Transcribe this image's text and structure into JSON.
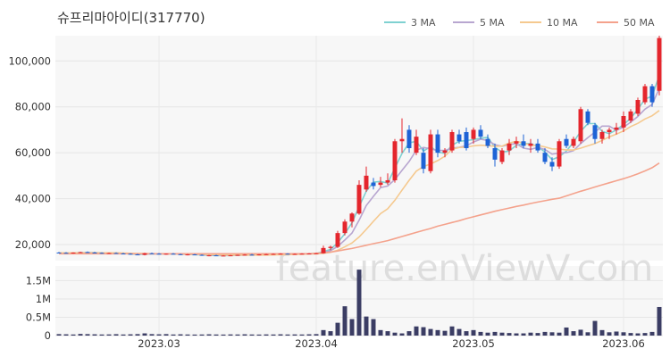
{
  "chart_data": [
    {
      "type": "candlestick",
      "title": "슈프리마아이디(317770)",
      "y_ticks": [
        20000,
        40000,
        60000,
        80000,
        100000
      ],
      "y_tick_labels": [
        "20,000",
        "40,000",
        "60,000",
        "80,000",
        "100,000"
      ],
      "ylim": [
        13000,
        111000
      ],
      "x_tick_labels": [
        "2023.03",
        "2023.04",
        "2023.05",
        "2023.06"
      ],
      "x_tick_index": [
        14,
        36,
        58,
        79
      ],
      "legend_placement": "top-right",
      "series": [
        {
          "name": "3 MA",
          "color": "#7fd1d1"
        },
        {
          "name": "5 MA",
          "color": "#b8a6d0"
        },
        {
          "name": "10 MA",
          "color": "#f5c98f"
        },
        {
          "name": "50 MA",
          "color": "#f4a28c"
        }
      ],
      "up_color": "#e4262d",
      "down_color": "#1e63d6",
      "candles": [
        [
          16500,
          16800,
          16200,
          16400
        ],
        [
          16400,
          16700,
          16100,
          16300
        ],
        [
          16300,
          16600,
          16000,
          16500
        ],
        [
          16500,
          16900,
          16300,
          16700
        ],
        [
          16700,
          17000,
          16400,
          16500
        ],
        [
          16500,
          16800,
          16200,
          16400
        ],
        [
          16400,
          16600,
          16000,
          16200
        ],
        [
          16200,
          16500,
          15900,
          16300
        ],
        [
          16300,
          16600,
          16000,
          16100
        ],
        [
          16100,
          16400,
          15800,
          16000
        ],
        [
          16000,
          16200,
          15600,
          15700
        ],
        [
          15700,
          16000,
          15400,
          15500
        ],
        [
          15500,
          16400,
          15300,
          16200
        ],
        [
          16200,
          16500,
          15900,
          16000
        ],
        [
          16000,
          16300,
          15700,
          15800
        ],
        [
          15800,
          16100,
          15600,
          16000
        ],
        [
          16000,
          16300,
          15700,
          15800
        ],
        [
          15800,
          16000,
          15500,
          15600
        ],
        [
          15600,
          15900,
          15300,
          15700
        ],
        [
          15700,
          15900,
          15400,
          15500
        ],
        [
          15500,
          15700,
          15100,
          15200
        ],
        [
          15200,
          15500,
          14900,
          15300
        ],
        [
          15300,
          15600,
          15000,
          15100
        ],
        [
          15100,
          15400,
          14900,
          15200
        ],
        [
          15200,
          15500,
          15000,
          15300
        ],
        [
          15300,
          15600,
          15100,
          15500
        ],
        [
          15500,
          15800,
          15300,
          15600
        ],
        [
          15600,
          15900,
          15400,
          15500
        ],
        [
          15500,
          15800,
          15300,
          15700
        ],
        [
          15700,
          16000,
          15500,
          15800
        ],
        [
          15800,
          16100,
          15600,
          15900
        ],
        [
          15900,
          16200,
          15700,
          16000
        ],
        [
          16000,
          16200,
          15700,
          15800
        ],
        [
          15800,
          16100,
          15600,
          15900
        ],
        [
          15900,
          16200,
          15700,
          16000
        ],
        [
          16000,
          16300,
          15800,
          16100
        ],
        [
          16100,
          16400,
          15900,
          16200
        ],
        [
          16200,
          19500,
          16000,
          18500
        ],
        [
          18500,
          19500,
          17500,
          19000
        ],
        [
          19000,
          26000,
          18500,
          25000
        ],
        [
          25000,
          31000,
          24000,
          30000
        ],
        [
          30000,
          34000,
          27500,
          33500
        ],
        [
          33500,
          48000,
          33000,
          46000
        ],
        [
          44000,
          54000,
          43000,
          50000
        ],
        [
          47000,
          49000,
          44000,
          45500
        ],
        [
          46000,
          49500,
          45000,
          47000
        ],
        [
          47000,
          51000,
          46000,
          48000
        ],
        [
          48000,
          66000,
          47000,
          65000
        ],
        [
          65000,
          75000,
          60000,
          66000
        ],
        [
          70000,
          72000,
          60000,
          62000
        ],
        [
          60000,
          70000,
          59000,
          67000
        ],
        [
          60000,
          62000,
          51000,
          53000
        ],
        [
          52000,
          70000,
          51000,
          68000
        ],
        [
          68000,
          70000,
          58000,
          60000
        ],
        [
          60000,
          62000,
          58000,
          61000
        ],
        [
          61000,
          70000,
          60000,
          69000
        ],
        [
          68000,
          70000,
          64000,
          65000
        ],
        [
          69000,
          71000,
          61000,
          62000
        ],
        [
          66000,
          71000,
          64000,
          70000
        ],
        [
          70000,
          72000,
          66000,
          67000
        ],
        [
          66000,
          68000,
          62000,
          63000
        ],
        [
          62000,
          64000,
          54000,
          57000
        ],
        [
          56000,
          62000,
          55000,
          61000
        ],
        [
          61000,
          66000,
          59000,
          64000
        ],
        [
          64000,
          67000,
          62000,
          65000
        ],
        [
          65000,
          68000,
          62000,
          63000
        ],
        [
          63000,
          66000,
          60000,
          64000
        ],
        [
          64000,
          66000,
          60000,
          61000
        ],
        [
          60000,
          62000,
          55000,
          56000
        ],
        [
          56000,
          58000,
          52000,
          54000
        ],
        [
          54000,
          66000,
          53000,
          65000
        ],
        [
          66000,
          68000,
          62000,
          63000
        ],
        [
          63000,
          67000,
          62000,
          66000
        ],
        [
          65000,
          80000,
          64000,
          79000
        ],
        [
          78000,
          79000,
          72000,
          73000
        ],
        [
          72000,
          73000,
          64000,
          66000
        ],
        [
          66000,
          70000,
          64000,
          69000
        ],
        [
          69000,
          71000,
          66000,
          70000
        ],
        [
          70000,
          73000,
          68000,
          71000
        ],
        [
          71000,
          78000,
          69000,
          76000
        ],
        [
          74000,
          79000,
          73000,
          78000
        ],
        [
          77000,
          84000,
          76000,
          83000
        ],
        [
          82000,
          90000,
          81000,
          89000
        ],
        [
          89000,
          90000,
          80000,
          82000
        ],
        [
          87000,
          111000,
          85000,
          110000
        ]
      ],
      "ma3": [
        16400,
        16400,
        16400,
        16500,
        16500,
        16500,
        16400,
        16300,
        16200,
        16100,
        15900,
        15700,
        15800,
        15900,
        16000,
        15900,
        15900,
        15800,
        15700,
        15600,
        15500,
        15300,
        15200,
        15200,
        15200,
        15300,
        15500,
        15500,
        15600,
        15700,
        15800,
        15900,
        15900,
        15900,
        15900,
        16000,
        16100,
        16900,
        17900,
        20800,
        24700,
        29500,
        36500,
        43200,
        47200,
        47500,
        46800,
        53300,
        59700,
        64300,
        65000,
        60700,
        62700,
        60300,
        59700,
        63300,
        65000,
        65300,
        65700,
        66300,
        66700,
        62300,
        60300,
        60700,
        63300,
        64000,
        64000,
        62700,
        60300,
        57000,
        58300,
        60700,
        64700,
        69300,
        72700,
        72700,
        69300,
        68300,
        70000,
        72300,
        75000,
        79000,
        83300,
        84700,
        93700
      ],
      "ma5": [
        16400,
        16400,
        16400,
        16400,
        16500,
        16500,
        16400,
        16400,
        16300,
        16200,
        16000,
        15900,
        15900,
        15900,
        15900,
        15900,
        16000,
        15800,
        15800,
        15700,
        15600,
        15500,
        15400,
        15300,
        15300,
        15300,
        15400,
        15400,
        15500,
        15600,
        15700,
        15800,
        15800,
        15900,
        15900,
        16000,
        16000,
        16500,
        17300,
        19200,
        22000,
        25000,
        30600,
        37000,
        41000,
        44800,
        45500,
        48300,
        52300,
        56200,
        61100,
        62300,
        61700,
        61000,
        61000,
        62000,
        62400,
        63000,
        64700,
        65900,
        65300,
        63500,
        62800,
        63600,
        64000,
        62000,
        61500,
        62300,
        61400,
        59400,
        59900,
        60000,
        60900,
        64000,
        66600,
        69000,
        71600,
        71600,
        69800,
        71100,
        73300,
        75800,
        79000,
        81000,
        88000
      ],
      "ma10": [
        16400,
        16400,
        16400,
        16400,
        16400,
        16400,
        16400,
        16400,
        16400,
        16300,
        16200,
        16100,
        16100,
        16000,
        16000,
        15900,
        15900,
        15900,
        15800,
        15800,
        15700,
        15700,
        15600,
        15500,
        15400,
        15400,
        15400,
        15400,
        15400,
        15400,
        15500,
        15600,
        15600,
        15700,
        15800,
        15900,
        15900,
        16200,
        16600,
        17500,
        19000,
        20700,
        23300,
        26600,
        30100,
        33500,
        35600,
        39300,
        43700,
        48000,
        52000,
        54000,
        55100,
        56600,
        58500,
        61500,
        62300,
        62400,
        63000,
        63300,
        63100,
        62800,
        62900,
        64200,
        65000,
        64200,
        63300,
        63200,
        62500,
        61700,
        61600,
        61200,
        61200,
        62000,
        63000,
        64000,
        65400,
        66900,
        68100,
        69500,
        71400,
        72800,
        74700,
        76100,
        78400
      ],
      "ma50": [
        16000,
        16000,
        16000,
        16000,
        16000,
        16000,
        16000,
        16000,
        16000,
        16000,
        16000,
        16000,
        16000,
        16000,
        16000,
        16000,
        16000,
        16000,
        16000,
        16000,
        16000,
        16000,
        16000,
        16000,
        16000,
        16000,
        16000,
        16000,
        16000,
        16000,
        16000,
        16000,
        16000,
        16000,
        16000,
        16000,
        16200,
        16400,
        16700,
        17200,
        17800,
        18300,
        19000,
        19700,
        20400,
        21000,
        21700,
        22600,
        23500,
        24400,
        25300,
        26200,
        27000,
        28000,
        28800,
        29600,
        30400,
        31300,
        32100,
        32900,
        33700,
        34500,
        35200,
        35900,
        36600,
        37200,
        37900,
        38500,
        39100,
        39700,
        40200,
        41200,
        42200,
        43200,
        44100,
        45100,
        46000,
        46900,
        47800,
        48700,
        49700,
        50800,
        52100,
        53500,
        55500
      ],
      "volume_ticks": [
        0,
        500000,
        1000000,
        1500000
      ],
      "volume_tick_labels": [
        "0",
        "0.5M",
        "1M",
        "1.5M"
      ],
      "volume_max": 1900000,
      "volume": [
        40000,
        35000,
        30000,
        45000,
        40000,
        35000,
        30000,
        32000,
        38000,
        30000,
        35000,
        40000,
        60000,
        40000,
        35000,
        40000,
        30000,
        35000,
        30000,
        28000,
        30000,
        35000,
        30000,
        28000,
        32000,
        30000,
        35000,
        30000,
        28000,
        32000,
        30000,
        35000,
        30000,
        32000,
        30000,
        35000,
        40000,
        150000,
        120000,
        350000,
        800000,
        450000,
        1800000,
        520000,
        450000,
        150000,
        120000,
        80000,
        60000,
        120000,
        250000,
        230000,
        180000,
        150000,
        130000,
        250000,
        180000,
        120000,
        150000,
        100000,
        80000,
        100000,
        80000,
        70000,
        60000,
        60000,
        80000,
        70000,
        100000,
        90000,
        80000,
        220000,
        120000,
        160000,
        90000,
        400000,
        150000,
        90000,
        110000,
        90000,
        70000,
        60000,
        70000,
        100000,
        780000
      ]
    }
  ],
  "watermark": "feature.enViewV.com"
}
